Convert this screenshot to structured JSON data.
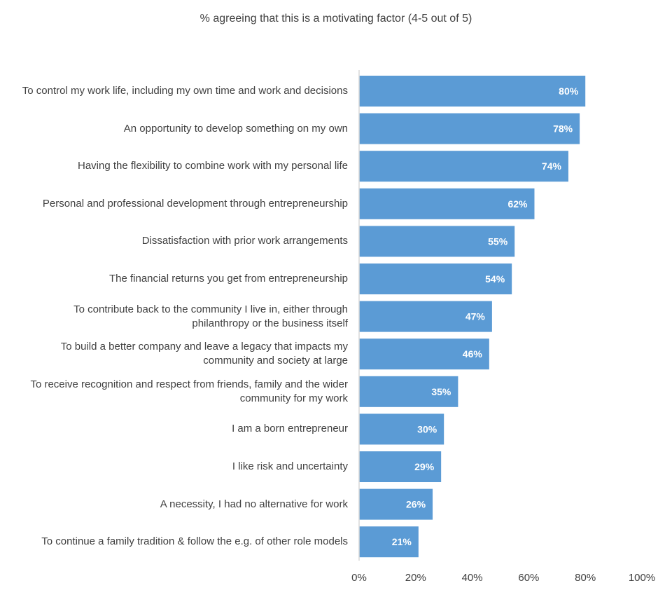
{
  "chart_data": {
    "type": "bar",
    "orientation": "horizontal",
    "title": "% agreeing that this is a motivating factor (4-5 out of 5)",
    "categories": [
      "To control my work life, including my own time and work and decisions",
      "An opportunity to develop something on my own",
      "Having the flexibility to combine work with my personal life",
      "Personal and professional development through entrepreneurship",
      "Dissatisfaction with prior work arrangements",
      "The financial returns you get from entrepreneurship",
      "To contribute back to the community I live in, either through philanthropy or the business itself",
      "To build a better company and leave a legacy that impacts my community and society at large",
      "To receive recognition and respect from friends, family and the wider community for my work",
      "I am a born entrepreneur",
      "I like risk and uncertainty",
      "A necessity, I had no alternative for work",
      "To continue a family tradition & follow the e.g. of other role models"
    ],
    "values": [
      80,
      78,
      74,
      62,
      55,
      54,
      47,
      46,
      35,
      30,
      29,
      26,
      21
    ],
    "data_labels": [
      "80%",
      "78%",
      "74%",
      "62%",
      "55%",
      "54%",
      "47%",
      "46%",
      "35%",
      "30%",
      "29%",
      "26%",
      "21%"
    ],
    "xlim": [
      0,
      100
    ],
    "x_ticks": [
      "0%",
      "20%",
      "40%",
      "60%",
      "80%",
      "100%"
    ],
    "xlabel": "",
    "ylabel": "",
    "grid": false,
    "legend": "none",
    "colors": {
      "bar": "#5b9bd5",
      "data_label": "#ffffff",
      "axis": "#d9d9d9"
    }
  }
}
